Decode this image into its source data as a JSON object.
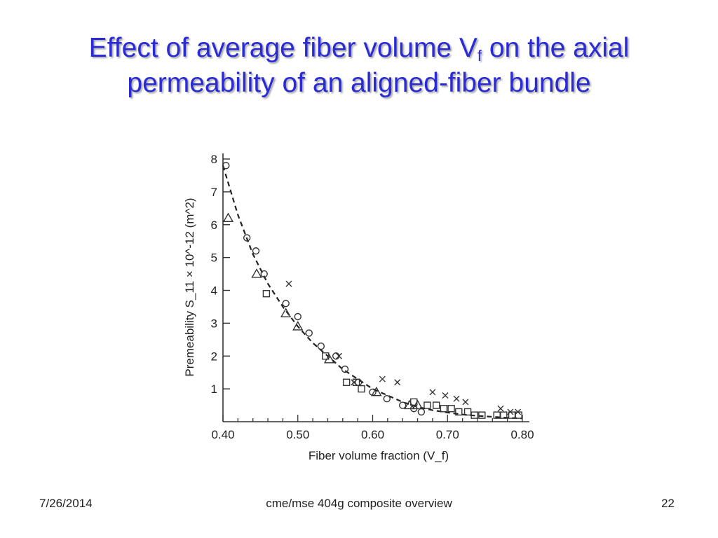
{
  "slide": {
    "title_part1": "Effect of average fiber volume V",
    "title_sub": "f",
    "title_part2": " on the axial",
    "title_line2": "permeability of an aligned-fiber bundle"
  },
  "footer": {
    "date": "7/26/2014",
    "center": "cme/mse 404g composite overview",
    "page": "22"
  },
  "chart_data": {
    "type": "scatter",
    "title": "",
    "xlabel": "Fiber volume fraction (V_f)",
    "ylabel": "Premeability S_11 × 10^-12 (m^2)",
    "xlim": [
      0.4,
      0.8
    ],
    "ylim": [
      0,
      8
    ],
    "x_ticks": [
      "0.40",
      "0.50",
      "0.60",
      "0.70",
      "0.80"
    ],
    "y_ticks": [
      "1",
      "2",
      "3",
      "4",
      "5",
      "6",
      "7",
      "8"
    ],
    "grid": false,
    "legend": "none",
    "series": [
      {
        "marker": "circle",
        "x": [
          0.404,
          0.432,
          0.444,
          0.455,
          0.484,
          0.5,
          0.515,
          0.531,
          0.551,
          0.563,
          0.581,
          0.6,
          0.619,
          0.64,
          0.655,
          0.665
        ],
        "y": [
          7.8,
          5.6,
          5.2,
          4.5,
          3.6,
          3.2,
          2.7,
          2.3,
          2.0,
          1.6,
          1.2,
          0.9,
          0.7,
          0.5,
          0.4,
          0.3
        ]
      },
      {
        "marker": "triangle",
        "x": [
          0.407,
          0.445,
          0.484,
          0.5,
          0.542,
          0.605,
          0.649,
          0.66
        ],
        "y": [
          6.2,
          4.5,
          3.3,
          2.9,
          1.9,
          0.9,
          0.5,
          0.5
        ]
      },
      {
        "marker": "square",
        "x": [
          0.458,
          0.537,
          0.565,
          0.578,
          0.585,
          0.655,
          0.673,
          0.685,
          0.695,
          0.705,
          0.715,
          0.727,
          0.736,
          0.746,
          0.766,
          0.775,
          0.786,
          0.795
        ],
        "y": [
          3.9,
          2.0,
          1.2,
          1.2,
          1.0,
          0.6,
          0.5,
          0.5,
          0.4,
          0.4,
          0.3,
          0.3,
          0.2,
          0.2,
          0.2,
          0.2,
          0.2,
          0.2
        ]
      },
      {
        "marker": "cross",
        "x": [
          0.488,
          0.555,
          0.575,
          0.613,
          0.633,
          0.68,
          0.697,
          0.712,
          0.724,
          0.771,
          0.784,
          0.794
        ],
        "y": [
          4.2,
          2.0,
          1.2,
          1.3,
          1.2,
          0.9,
          0.8,
          0.7,
          0.6,
          0.4,
          0.3,
          0.3
        ]
      }
    ],
    "fit_curve": {
      "style": "dashed",
      "x": [
        0.4,
        0.42,
        0.44,
        0.46,
        0.48,
        0.5,
        0.52,
        0.54,
        0.56,
        0.58,
        0.6,
        0.62,
        0.64,
        0.66,
        0.68,
        0.7,
        0.72,
        0.74,
        0.76,
        0.78,
        0.8
      ],
      "y": [
        7.8,
        6.3,
        5.1,
        4.2,
        3.5,
        2.9,
        2.4,
        2.0,
        1.6,
        1.3,
        1.0,
        0.8,
        0.6,
        0.45,
        0.35,
        0.28,
        0.22,
        0.18,
        0.15,
        0.12,
        0.1
      ]
    }
  }
}
